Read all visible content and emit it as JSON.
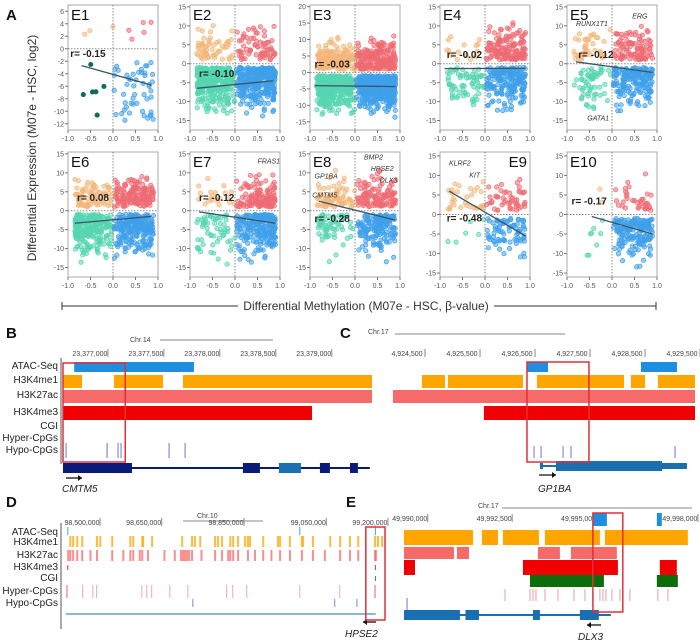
{
  "panel_labels": {
    "a": "A",
    "b": "B",
    "c": "C",
    "d": "D",
    "e": "E"
  },
  "colors": {
    "up_hypo": "#f4b77a",
    "up_hyper": "#ef6b73",
    "down_hypo": "#55d6b0",
    "down_hyper": "#3fa0ea",
    "e1_down_hypo": "#0f6b5f",
    "trend": "#3a5566",
    "atac": "#1e8fe0",
    "h3k4me1": "#ffa500",
    "h3k27ac": "#f76a6a",
    "h3k4me3": "#f00000",
    "cgi": "#0b6e0b",
    "hyper": "#e89a9a",
    "hypo": "#6a6ac8",
    "gene": "#1a6fb0",
    "gene_dark": "#0a1a78",
    "highlight": "#e0303a"
  },
  "chart_data": {
    "type": "scatter",
    "ylabel": "Differential Expression (M07e - HSC, log2)",
    "xlabel": "Differential Methylation (M07e - HSC, β-value)",
    "xlim": [
      -1,
      1
    ],
    "xticks": [
      "-1.0",
      "-0.5",
      "0.0",
      "0.5",
      "1.0"
    ],
    "panels": [
      {
        "id": "E1",
        "r": "r= -0.15",
        "ylim": [
          -13,
          7
        ],
        "yticks": [
          -12,
          -10,
          -8,
          -6,
          -4,
          -2,
          0,
          2,
          4,
          6
        ],
        "trend": [
          [
            -0.7,
            -2.7
          ],
          [
            0.85,
            -5.8
          ]
        ],
        "genes": []
      },
      {
        "id": "E2",
        "r": "r= -0.10",
        "ylim": [
          -17.5,
          15.5
        ],
        "yticks": [
          -15,
          -10,
          -5,
          0,
          5,
          10,
          15
        ],
        "trend": [
          [
            -0.85,
            -6.5
          ],
          [
            0.85,
            -4.5
          ]
        ],
        "genes": []
      },
      {
        "id": "E3",
        "r": "r= -0.03",
        "ylim": [
          -17.5,
          20.5
        ],
        "yticks": [
          -15,
          -10,
          -5,
          0,
          5,
          10,
          15,
          20
        ],
        "trend": [
          [
            -0.9,
            -4.0
          ],
          [
            0.9,
            -4.3
          ]
        ],
        "genes": []
      },
      {
        "id": "E4",
        "r": "r= -0.02",
        "ylim": [
          -17.5,
          15.5
        ],
        "yticks": [
          -15,
          -10,
          -5,
          0,
          5,
          10,
          15
        ],
        "trend": [
          [
            -0.9,
            -1.3
          ],
          [
            0.9,
            -1.2
          ]
        ],
        "genes": []
      },
      {
        "id": "E5",
        "r": "r= -0.12",
        "ylim": [
          -17.5,
          15.5
        ],
        "yticks": [
          -15,
          -10,
          -5,
          0,
          5,
          10,
          15
        ],
        "trend": [
          [
            -0.8,
            0.5
          ],
          [
            0.9,
            -2.3
          ]
        ],
        "genes": [
          "RUNX1T1",
          "ERG",
          "GATA1"
        ]
      },
      {
        "id": "E6",
        "r": "r= 0.08",
        "ylim": [
          -17.5,
          15.5
        ],
        "yticks": [
          -15,
          -10,
          -5,
          0,
          5,
          10,
          15
        ],
        "trend": [
          [
            -0.85,
            -3.3
          ],
          [
            0.85,
            -1.5
          ]
        ],
        "genes": []
      },
      {
        "id": "E7",
        "r": "r= -0.12",
        "ylim": [
          -17.5,
          15.5
        ],
        "yticks": [
          -15,
          -10,
          -5,
          0,
          5,
          10,
          15
        ],
        "trend": [
          [
            -0.8,
            -0.3
          ],
          [
            0.9,
            -3.3
          ]
        ],
        "genes": [
          "FRAS1"
        ]
      },
      {
        "id": "E8",
        "r": "r= -0.28",
        "ylim": [
          -17.5,
          15.5
        ],
        "yticks": [
          -15,
          -10,
          -5,
          0,
          5,
          10,
          15
        ],
        "trend": [
          [
            -0.8,
            2.5
          ],
          [
            0.9,
            -2.5
          ]
        ],
        "genes": [
          "GP1BA",
          "CMTM5",
          "BMP2",
          "HPSE2",
          "DLX3"
        ]
      },
      {
        "id": "E9",
        "r": "r= -0.48",
        "ylim": [
          -16,
          16
        ],
        "yticks": [
          -15,
          -10,
          -5,
          0,
          5,
          10,
          15
        ],
        "trend": [
          [
            -0.8,
            6.0
          ],
          [
            0.9,
            -5.5
          ]
        ],
        "genes": [
          "KLRF2",
          "KIT"
        ]
      },
      {
        "id": "E10",
        "r": "r= -0.17",
        "ylim": [
          -16,
          16
        ],
        "yticks": [
          -15,
          -10,
          -5,
          0,
          5,
          10,
          15
        ],
        "trend": [
          [
            -0.45,
            -0.5
          ],
          [
            0.9,
            -5.0
          ]
        ],
        "genes": []
      }
    ]
  },
  "track_names": [
    "ATAC-Seq",
    "H3K4me1",
    "H3K27ac",
    "H3K4me3",
    "CGI",
    "Hyper-CpGs",
    "Hypo-CpGs"
  ],
  "browser": {
    "B": {
      "chrom": "Chr.14",
      "range": [
        23376760,
        23379520
      ],
      "ticks": [
        "23,377,000",
        "23,377,500",
        "23,378,000",
        "23,378,500",
        "23,379,000"
      ],
      "tick_bp": [
        23377000,
        23377500,
        23378000,
        23378500,
        23379000
      ],
      "gene": "CMTM5",
      "strand": "+",
      "atac": [
        [
          23376860,
          23377930
        ]
      ],
      "h3k4me1": [
        [
          23376760,
          23376930
        ],
        [
          23377215,
          23377653
        ],
        [
          23377832,
          23379520
        ]
      ],
      "h3k27ac": [
        [
          23376760,
          23379520
        ]
      ],
      "h3k4me3": [
        [
          23376760,
          23378984
        ]
      ],
      "cgi": [],
      "hyper": [],
      "hypo": [
        23376787,
        23377153,
        23377251,
        23377278,
        23377707,
        23377850
      ],
      "gene_span": [
        23376760,
        23379501
      ],
      "exons": [
        [
          23376760,
          23377376
        ],
        [
          23378367,
          23378519
        ],
        [
          23378689,
          23378885
        ],
        [
          23379055,
          23379144
        ],
        [
          23379323,
          23379394
        ]
      ],
      "highlight": [
        23376760,
        23377316
      ]
    },
    "C": {
      "chrom": "Chr.17",
      "range": [
        4924245,
        4929736
      ],
      "ticks": [
        "4,924,500",
        "4,925,500",
        "4,926,500",
        "4,927,500",
        "4,928,500",
        "4,929,500"
      ],
      "tick_bp": [
        4924500,
        4925500,
        4926500,
        4927500,
        4928500,
        4929500
      ],
      "gene": "GP1BA",
      "strand": "+",
      "atac": [
        [
          4926681,
          4927063
        ],
        [
          4928754,
          4929408
        ]
      ],
      "h3k4me1": [
        [
          4924772,
          4925190
        ],
        [
          4925245,
          4926608
        ],
        [
          4926863,
          4928445
        ],
        [
          4928572,
          4928827
        ],
        [
          4929063,
          4929736
        ]
      ],
      "h3k27ac": [
        [
          4924245,
          4929736
        ]
      ],
      "h3k4me3": [
        [
          4925899,
          4929736
        ]
      ],
      "cgi": [],
      "hyper": [],
      "hypo": [
        4926808,
        4926936,
        4927336,
        4927481,
        4929372
      ],
      "gene_span": [
        4926917,
        4929590
      ],
      "exons": [
        [
          4926917,
          4926972
        ],
        [
          4927208,
          4929135
        ]
      ],
      "highlight": [
        4926681,
        4927808
      ]
    },
    "D": {
      "chrom": "Chr.10",
      "range": [
        98461100,
        99236600
      ],
      "ticks": [
        "98,500,000",
        "98,650,000",
        "98,850,000",
        "99,050,000",
        "99,200,000"
      ],
      "tick_bp": [
        98500000,
        98650000,
        98850000,
        99050000,
        99200000
      ],
      "gene": "HPSE2",
      "strand": "-",
      "atac": [
        98466000,
        99030000,
        99214000
      ],
      "h3k4me1": [
        98471000,
        98478000,
        98488000,
        98500000,
        98536000,
        98544000,
        98573000,
        98617000,
        98624000,
        98646000,
        98648000,
        98670000,
        98743000,
        98767000,
        98774000,
        98787000,
        98823000,
        98830000,
        98840000,
        98860000,
        98867000,
        98879000,
        98896000,
        98903000,
        98908000,
        98940000,
        98976000,
        98981000,
        99005000,
        99034000,
        99037000,
        99061000,
        99103000,
        99127000,
        99151000,
        99171000,
        99212000,
        99219000,
        99229000
      ],
      "h3k27ac": [
        98466000,
        98471000,
        98478000,
        98488000,
        98500000,
        98520000,
        98536000,
        98573000,
        98600000,
        98617000,
        98624000,
        98640000,
        98646000,
        98660000,
        98700000,
        98725000,
        98740000,
        98745000,
        98750000,
        98755000,
        98760000,
        98767000,
        98790000,
        98823000,
        98840000,
        98855000,
        98860000,
        98867000,
        98879000,
        98903000,
        98920000,
        98940000,
        98960000,
        98981000,
        99005000,
        99034000,
        99061000,
        99090000,
        99127000,
        99151000,
        99171000,
        99212000,
        99214000
      ],
      "h3k4me3": [
        98466000,
        99214000
      ],
      "cgi": [
        99214000
      ],
      "hyper": [
        98463000,
        98465000,
        98502000,
        98527000,
        98536000,
        98646000,
        98658000,
        98670000,
        98714000,
        98758000,
        98852000,
        98867000,
        98901000,
        99030000,
        99127000,
        99212000,
        99214000
      ],
      "hypo": [
        98770000,
        99115000,
        99169000
      ],
      "gene_span": [
        98461100,
        99214000
      ],
      "highlight": [
        99190000,
        99236600
      ]
    },
    "E": {
      "chrom": "Chr.17",
      "range": [
        49989800,
        49998300
      ],
      "ticks": [
        "49,990,000",
        "49,992,500",
        "49,995,000",
        "49,998,000"
      ],
      "tick_bp": [
        49990000,
        49992500,
        49995000,
        49998000
      ],
      "gene": "DLX3",
      "strand": "-",
      "atac": [
        [
          49995424,
          49995838
        ],
        [
          49997318,
          49997466
        ]
      ],
      "h3k4me1": [
        [
          49989830,
          49991872
        ],
        [
          49992138,
          49992612
        ],
        [
          49992760,
          49993826
        ],
        [
          49994003,
          49995631
        ],
        [
          49995779,
          49998236
        ]
      ],
      "h3k27ac": [
        [
          49989830,
          49991310
        ],
        [
          49991398,
          49991754
        ],
        [
          49993796,
          49994447
        ],
        [
          49994773,
          49996134
        ]
      ],
      "h3k4me3": [
        [
          49989830,
          49990155
        ],
        [
          49993352,
          49996164
        ],
        [
          49997407,
          49997910
        ]
      ],
      "cgi": [
        [
          49993559,
          49995750
        ],
        [
          49997318,
          49997940
        ]
      ],
      "hyper": [
        49992819,
        49993559,
        49993648,
        49993737,
        49994003,
        49994388,
        49994862,
        49995187,
        49995631,
        49995720,
        49995809,
        49995986,
        49996223,
        49996519,
        49997348,
        49997644
      ],
      "hypo": [
        49989918
      ],
      "gene_span": [
        49989830,
        49995957
      ],
      "exons": [
        [
          49989830,
          49991487
        ],
        [
          49991650,
          49992050
        ],
        [
          49993648,
          49993855
        ],
        [
          49995039,
          49995600
        ]
      ],
      "highlight": [
        49995424,
        49996310
      ]
    }
  }
}
